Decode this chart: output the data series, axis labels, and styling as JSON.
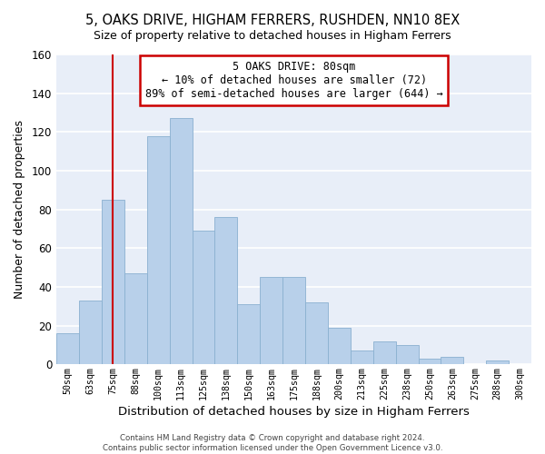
{
  "title": "5, OAKS DRIVE, HIGHAM FERRERS, RUSHDEN, NN10 8EX",
  "subtitle": "Size of property relative to detached houses in Higham Ferrers",
  "xlabel": "Distribution of detached houses by size in Higham Ferrers",
  "ylabel": "Number of detached properties",
  "bin_labels": [
    "50sqm",
    "63sqm",
    "75sqm",
    "88sqm",
    "100sqm",
    "113sqm",
    "125sqm",
    "138sqm",
    "150sqm",
    "163sqm",
    "175sqm",
    "188sqm",
    "200sqm",
    "213sqm",
    "225sqm",
    "238sqm",
    "250sqm",
    "263sqm",
    "275sqm",
    "288sqm",
    "300sqm"
  ],
  "bar_heights": [
    16,
    33,
    85,
    47,
    118,
    127,
    69,
    76,
    31,
    45,
    45,
    32,
    19,
    7,
    12,
    10,
    3,
    4,
    0,
    2,
    0
  ],
  "bar_color": "#b8d0ea",
  "bar_edge_color": "#8ab0d0",
  "vline_x": 2,
  "vline_color": "#cc0000",
  "annotation_title": "5 OAKS DRIVE: 80sqm",
  "annotation_line1": "← 10% of detached houses are smaller (72)",
  "annotation_line2": "89% of semi-detached houses are larger (644) →",
  "annotation_box_color": "#ffffff",
  "annotation_box_edge": "#cc0000",
  "ylim": [
    0,
    160
  ],
  "yticks": [
    0,
    20,
    40,
    60,
    80,
    100,
    120,
    140,
    160
  ],
  "bg_color": "#e8eef8",
  "footer1": "Contains HM Land Registry data © Crown copyright and database right 2024.",
  "footer2": "Contains public sector information licensed under the Open Government Licence v3.0."
}
